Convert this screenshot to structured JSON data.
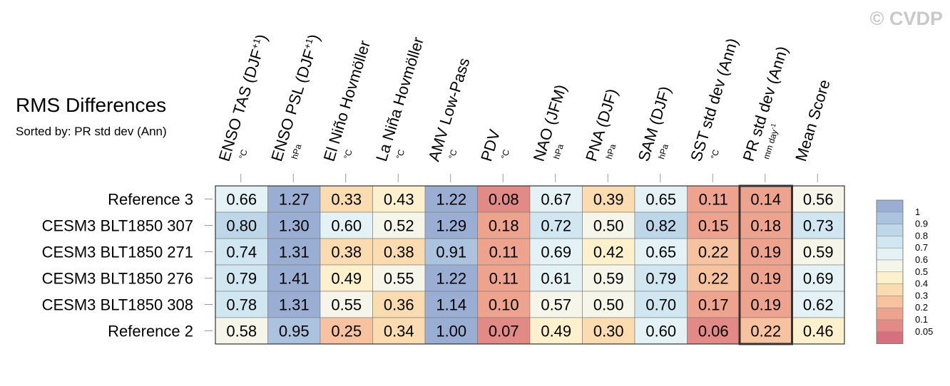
{
  "watermark": "© CVDP",
  "chart_data": {
    "type": "heatmap",
    "title": "RMS Differences",
    "subtitle": "Sorted by: PR std dev (Ann)",
    "columns": [
      {
        "name": "ENSO TAS (DJF",
        "sup": "+1",
        "close": ")",
        "unit": "°C"
      },
      {
        "name": "ENSO PSL (DJF",
        "sup": "+1",
        "close": ")",
        "unit": "hPa"
      },
      {
        "name": "El Niño Hovmöller",
        "unit": "°C"
      },
      {
        "name": "La Niña Hovmöller",
        "unit": "°C"
      },
      {
        "name": "AMV Low-Pass",
        "unit": "°C"
      },
      {
        "name": "PDV",
        "unit": "°C"
      },
      {
        "name": "NAO (JFM)",
        "unit": "hPa"
      },
      {
        "name": "PNA (DJF)",
        "unit": "hPa"
      },
      {
        "name": "SAM (DJF)",
        "unit": "hPa"
      },
      {
        "name": "SST std dev (Ann)",
        "unit": "°C"
      },
      {
        "name": "PR std dev (Ann)",
        "unit": "mm day",
        "unit_sup": "-1"
      },
      {
        "name": "Mean Score",
        "unit": ""
      }
    ],
    "rows": [
      {
        "name": "Reference 3",
        "values": [
          0.66,
          1.27,
          0.33,
          0.43,
          1.22,
          0.08,
          0.67,
          0.39,
          0.65,
          0.11,
          0.14,
          0.56
        ]
      },
      {
        "name": "CESM3 BLT1850 307",
        "values": [
          0.8,
          1.3,
          0.6,
          0.52,
          1.29,
          0.18,
          0.72,
          0.5,
          0.82,
          0.15,
          0.18,
          0.73
        ]
      },
      {
        "name": "CESM3 BLT1850 271",
        "values": [
          0.74,
          1.31,
          0.38,
          0.38,
          0.91,
          0.11,
          0.69,
          0.42,
          0.65,
          0.22,
          0.19,
          0.59
        ]
      },
      {
        "name": "CESM3 BLT1850 276",
        "values": [
          0.79,
          1.41,
          0.49,
          0.55,
          1.22,
          0.11,
          0.61,
          0.59,
          0.79,
          0.22,
          0.19,
          0.69
        ]
      },
      {
        "name": "CESM3 BLT1850 308",
        "values": [
          0.78,
          1.31,
          0.55,
          0.36,
          1.14,
          0.1,
          0.57,
          0.5,
          0.7,
          0.17,
          0.19,
          0.62
        ]
      },
      {
        "name": "Reference 2",
        "values": [
          0.58,
          0.95,
          0.25,
          0.34,
          1.0,
          0.07,
          0.49,
          0.3,
          0.6,
          0.06,
          0.22,
          0.46
        ]
      }
    ],
    "highlighted_column": "PR std dev (Ann)",
    "colorbar": {
      "levels": [
        "1",
        "0.9",
        "0.8",
        "0.7",
        "0.6",
        "0.5",
        "0.4",
        "0.3",
        "0.2",
        "0.1",
        "0.05"
      ],
      "colors": [
        "#9aaed3",
        "#abc3de",
        "#bdd7e9",
        "#d0e6f0",
        "#e4f2f5",
        "#f5f5ea",
        "#fdf0cc",
        "#fbdcb0",
        "#f7c2a0",
        "#eea38f",
        "#e28a86",
        "#d4707f"
      ]
    }
  }
}
